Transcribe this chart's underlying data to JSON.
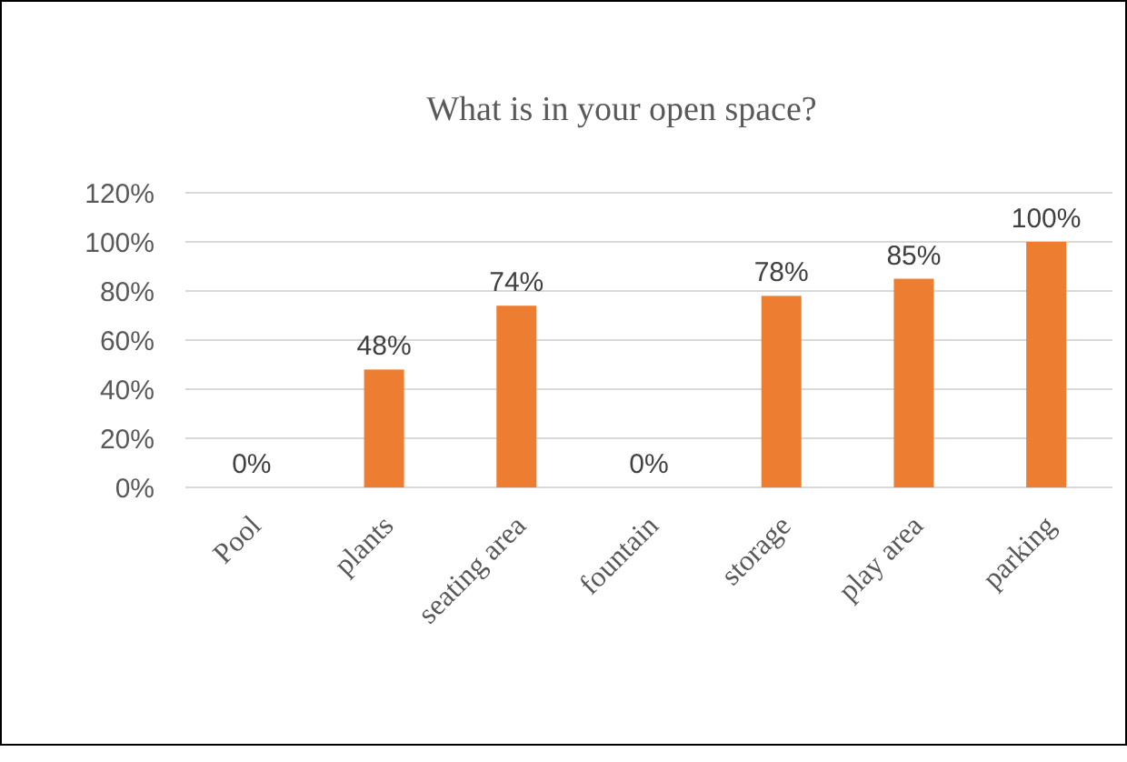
{
  "chart_data": {
    "type": "bar",
    "title": "What is in your open space?",
    "categories": [
      "Pool",
      "plants",
      "seating area",
      "fountain",
      "storage",
      "play area",
      "parking"
    ],
    "values": [
      0,
      48,
      74,
      0,
      78,
      85,
      100
    ],
    "value_labels": [
      "0%",
      "48%",
      "74%",
      "0%",
      "78%",
      "85%",
      "100%"
    ],
    "color": "#ed7d31",
    "ylim": [
      0,
      120
    ],
    "yticks": [
      {
        "value": 0,
        "label": "0%"
      },
      {
        "value": 20,
        "label": "20%"
      },
      {
        "value": 40,
        "label": "40%"
      },
      {
        "value": 60,
        "label": "60%"
      },
      {
        "value": 80,
        "label": "80%"
      },
      {
        "value": 100,
        "label": "100%"
      },
      {
        "value": 120,
        "label": "120%"
      }
    ],
    "grid": "y"
  }
}
